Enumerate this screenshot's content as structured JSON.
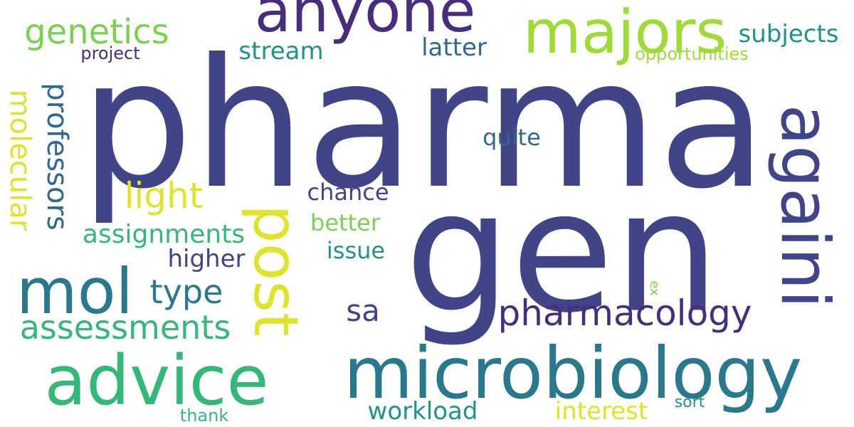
{
  "colors": {
    "background": "#ffffff",
    "indigo": "#414487",
    "purple": "#472d7b",
    "teal": "#2a788e",
    "blue_teal": "#31688e",
    "green_teal": "#21918c",
    "green": "#35b779",
    "light_green": "#7ad151",
    "lime": "#a0da39",
    "yellow": "#e0e32d"
  },
  "words": {
    "pharma": "pharma",
    "gen": "gen",
    "microbiology": "microbiology",
    "advice": "advice",
    "anyone": "anyone",
    "majors": "majors",
    "againi": "againi",
    "post": "post",
    "mol": "mol",
    "pharmacology": "pharmacology",
    "genetics": "genetics",
    "molecular": "molecular",
    "professors": "professors",
    "assessments": "assessments",
    "type": "type",
    "light": "light",
    "assignments": "assignments",
    "workload": "workload",
    "interest": "interest",
    "subjects": "subjects",
    "stream": "stream",
    "latter": "latter",
    "quite": "quite",
    "chance": "chance",
    "better": "better",
    "issue": "issue",
    "higher": "higher",
    "sa": "sa",
    "opportunities": "opportunities",
    "project": "project",
    "thank": "thank",
    "sort": "sort",
    "ex": "ex"
  }
}
